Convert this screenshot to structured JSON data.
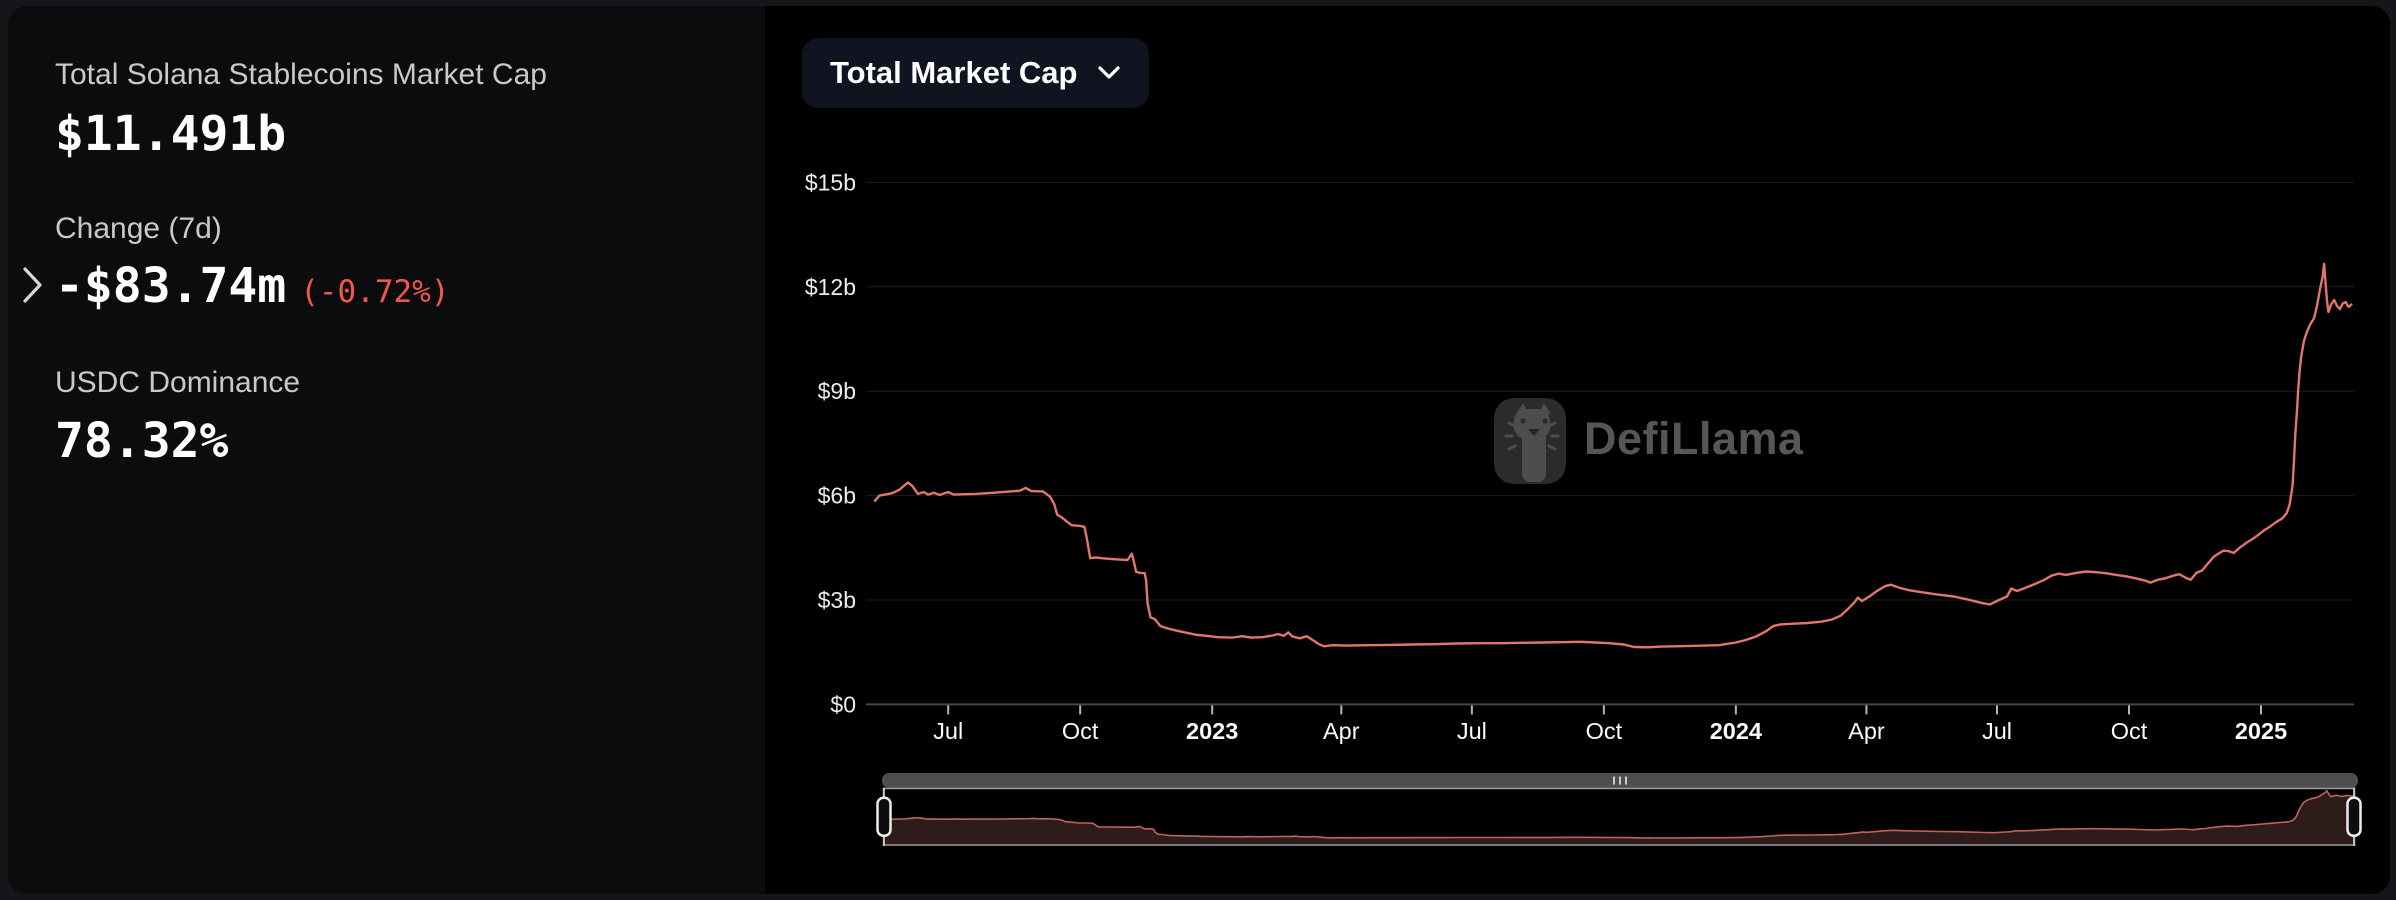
{
  "left_panel": {
    "stats": [
      {
        "label": "Total Solana Stablecoins Market Cap",
        "value": "$11.491b"
      },
      {
        "label": "Change (7d)",
        "value": "-$83.74m",
        "sub_value": "(-0.72%)",
        "sub_color": "#f4564e"
      },
      {
        "label": "USDC Dominance",
        "value": "78.32%"
      }
    ]
  },
  "toolbar": {
    "dropdown_label": "Total Market Cap"
  },
  "watermark": {
    "text": "DefiLlama"
  },
  "chart_data": {
    "type": "line",
    "title": "Total Market Cap",
    "xlabel": "",
    "ylabel": "",
    "ylim": [
      0,
      15
    ],
    "grid": "horizontal",
    "legend_position": "none",
    "line_color": "#e0766c",
    "nav_line_color": "#bf6359",
    "nav_fill_color": "#2d1c19",
    "y_axis": {
      "ticks": [
        {
          "v": 0,
          "label": "$0"
        },
        {
          "v": 3,
          "label": "$3b"
        },
        {
          "v": 6,
          "label": "$6b"
        },
        {
          "v": 9,
          "label": "$9b"
        },
        {
          "v": 12,
          "label": "$12b"
        },
        {
          "v": 15,
          "label": "$15b"
        }
      ]
    },
    "x_axis": {
      "ticks": [
        {
          "date": "2022-07-01",
          "label": "Jul",
          "bold": false
        },
        {
          "date": "2022-10-01",
          "label": "Oct",
          "bold": false
        },
        {
          "date": "2023-01-01",
          "label": "2023",
          "bold": true
        },
        {
          "date": "2023-04-01",
          "label": "Apr",
          "bold": false
        },
        {
          "date": "2023-07-01",
          "label": "Jul",
          "bold": false
        },
        {
          "date": "2023-10-01",
          "label": "Oct",
          "bold": false
        },
        {
          "date": "2024-01-01",
          "label": "2024",
          "bold": true
        },
        {
          "date": "2024-04-01",
          "label": "Apr",
          "bold": false
        },
        {
          "date": "2024-07-01",
          "label": "Jul",
          "bold": false
        },
        {
          "date": "2024-10-01",
          "label": "Oct",
          "bold": false
        },
        {
          "date": "2025-01-01",
          "label": "2025",
          "bold": true
        }
      ]
    },
    "series": [
      {
        "name": "Total Solana Stablecoins Market Cap",
        "unit": "$b",
        "points": [
          [
            "2022-05-11",
            5.85
          ],
          [
            "2022-05-14",
            6.0
          ],
          [
            "2022-05-18",
            6.03
          ],
          [
            "2022-05-23",
            6.07
          ],
          [
            "2022-05-28",
            6.17
          ],
          [
            "2022-06-03",
            6.38
          ],
          [
            "2022-06-06",
            6.28
          ],
          [
            "2022-06-10",
            6.05
          ],
          [
            "2022-06-14",
            6.1
          ],
          [
            "2022-06-17",
            6.03
          ],
          [
            "2022-06-21",
            6.08
          ],
          [
            "2022-06-25",
            6.02
          ],
          [
            "2022-07-01",
            6.1
          ],
          [
            "2022-07-05",
            6.03
          ],
          [
            "2022-07-12",
            6.04
          ],
          [
            "2022-07-20",
            6.05
          ],
          [
            "2022-08-01",
            6.08
          ],
          [
            "2022-08-10",
            6.11
          ],
          [
            "2022-08-20",
            6.14
          ],
          [
            "2022-08-24",
            6.22
          ],
          [
            "2022-08-28",
            6.13
          ],
          [
            "2022-09-05",
            6.12
          ],
          [
            "2022-09-10",
            5.97
          ],
          [
            "2022-09-13",
            5.75
          ],
          [
            "2022-09-15",
            5.45
          ],
          [
            "2022-09-18",
            5.38
          ],
          [
            "2022-09-21",
            5.28
          ],
          [
            "2022-09-25",
            5.15
          ],
          [
            "2022-10-01",
            5.13
          ],
          [
            "2022-10-04",
            5.1
          ],
          [
            "2022-10-06",
            4.7
          ],
          [
            "2022-10-08",
            4.2
          ],
          [
            "2022-10-12",
            4.22
          ],
          [
            "2022-10-16",
            4.2
          ],
          [
            "2022-10-22",
            4.18
          ],
          [
            "2022-10-29",
            4.16
          ],
          [
            "2022-11-03",
            4.15
          ],
          [
            "2022-11-06",
            4.33
          ],
          [
            "2022-11-08",
            4.0
          ],
          [
            "2022-11-09",
            3.81
          ],
          [
            "2022-11-12",
            3.78
          ],
          [
            "2022-11-15",
            3.77
          ],
          [
            "2022-11-16",
            3.55
          ],
          [
            "2022-11-17",
            2.9
          ],
          [
            "2022-11-19",
            2.5
          ],
          [
            "2022-11-22",
            2.45
          ],
          [
            "2022-11-26",
            2.25
          ],
          [
            "2022-12-01",
            2.18
          ],
          [
            "2022-12-07",
            2.12
          ],
          [
            "2022-12-13",
            2.07
          ],
          [
            "2022-12-21",
            2.0
          ],
          [
            "2022-12-28",
            1.97
          ],
          [
            "2023-01-05",
            1.93
          ],
          [
            "2023-01-15",
            1.92
          ],
          [
            "2023-01-22",
            1.96
          ],
          [
            "2023-01-28",
            1.92
          ],
          [
            "2023-02-05",
            1.93
          ],
          [
            "2023-02-12",
            1.98
          ],
          [
            "2023-02-16",
            2.02
          ],
          [
            "2023-02-20",
            1.97
          ],
          [
            "2023-02-23",
            2.07
          ],
          [
            "2023-02-26",
            1.95
          ],
          [
            "2023-03-03",
            1.9
          ],
          [
            "2023-03-08",
            1.96
          ],
          [
            "2023-03-12",
            1.85
          ],
          [
            "2023-03-16",
            1.74
          ],
          [
            "2023-03-20",
            1.67
          ],
          [
            "2023-03-26",
            1.7
          ],
          [
            "2023-04-05",
            1.69
          ],
          [
            "2023-04-20",
            1.7
          ],
          [
            "2023-05-05",
            1.71
          ],
          [
            "2023-05-20",
            1.72
          ],
          [
            "2023-06-05",
            1.73
          ],
          [
            "2023-06-20",
            1.75
          ],
          [
            "2023-07-05",
            1.76
          ],
          [
            "2023-07-20",
            1.76
          ],
          [
            "2023-08-05",
            1.77
          ],
          [
            "2023-08-20",
            1.78
          ],
          [
            "2023-09-05",
            1.79
          ],
          [
            "2023-09-15",
            1.8
          ],
          [
            "2023-09-25",
            1.78
          ],
          [
            "2023-10-05",
            1.76
          ],
          [
            "2023-10-15",
            1.72
          ],
          [
            "2023-10-22",
            1.65
          ],
          [
            "2023-11-01",
            1.64
          ],
          [
            "2023-11-10",
            1.66
          ],
          [
            "2023-11-20",
            1.67
          ],
          [
            "2023-12-01",
            1.68
          ],
          [
            "2023-12-10",
            1.69
          ],
          [
            "2023-12-20",
            1.7
          ],
          [
            "2024-01-01",
            1.78
          ],
          [
            "2024-01-08",
            1.85
          ],
          [
            "2024-01-15",
            1.95
          ],
          [
            "2024-01-22",
            2.1
          ],
          [
            "2024-01-27",
            2.25
          ],
          [
            "2024-02-01",
            2.3
          ],
          [
            "2024-02-10",
            2.32
          ],
          [
            "2024-02-20",
            2.34
          ],
          [
            "2024-03-01",
            2.38
          ],
          [
            "2024-03-08",
            2.44
          ],
          [
            "2024-03-14",
            2.55
          ],
          [
            "2024-03-20",
            2.78
          ],
          [
            "2024-03-24",
            2.95
          ],
          [
            "2024-03-26",
            3.07
          ],
          [
            "2024-03-29",
            2.97
          ],
          [
            "2024-04-03",
            3.1
          ],
          [
            "2024-04-08",
            3.25
          ],
          [
            "2024-04-14",
            3.4
          ],
          [
            "2024-04-18",
            3.44
          ],
          [
            "2024-04-24",
            3.35
          ],
          [
            "2024-05-01",
            3.28
          ],
          [
            "2024-05-10",
            3.22
          ],
          [
            "2024-05-20",
            3.16
          ],
          [
            "2024-06-01",
            3.1
          ],
          [
            "2024-06-10",
            3.02
          ],
          [
            "2024-06-20",
            2.92
          ],
          [
            "2024-06-26",
            2.87
          ],
          [
            "2024-07-01",
            2.97
          ],
          [
            "2024-07-04",
            3.03
          ],
          [
            "2024-07-08",
            3.1
          ],
          [
            "2024-07-11",
            3.33
          ],
          [
            "2024-07-15",
            3.26
          ],
          [
            "2024-07-20",
            3.34
          ],
          [
            "2024-07-27",
            3.45
          ],
          [
            "2024-08-03",
            3.58
          ],
          [
            "2024-08-08",
            3.7
          ],
          [
            "2024-08-13",
            3.76
          ],
          [
            "2024-08-18",
            3.72
          ],
          [
            "2024-08-25",
            3.78
          ],
          [
            "2024-09-01",
            3.82
          ],
          [
            "2024-09-08",
            3.8
          ],
          [
            "2024-09-15",
            3.77
          ],
          [
            "2024-09-22",
            3.72
          ],
          [
            "2024-09-29",
            3.68
          ],
          [
            "2024-10-06",
            3.62
          ],
          [
            "2024-10-12",
            3.56
          ],
          [
            "2024-10-16",
            3.5
          ],
          [
            "2024-10-21",
            3.58
          ],
          [
            "2024-10-26",
            3.62
          ],
          [
            "2024-11-01",
            3.7
          ],
          [
            "2024-11-05",
            3.74
          ],
          [
            "2024-11-10",
            3.63
          ],
          [
            "2024-11-13",
            3.58
          ],
          [
            "2024-11-17",
            3.78
          ],
          [
            "2024-11-21",
            3.85
          ],
          [
            "2024-11-25",
            4.05
          ],
          [
            "2024-11-29",
            4.24
          ],
          [
            "2024-12-03",
            4.35
          ],
          [
            "2024-12-06",
            4.42
          ],
          [
            "2024-12-10",
            4.4
          ],
          [
            "2024-12-13",
            4.35
          ],
          [
            "2024-12-17",
            4.5
          ],
          [
            "2024-12-22",
            4.65
          ],
          [
            "2024-12-27",
            4.78
          ],
          [
            "2024-12-31",
            4.9
          ],
          [
            "2025-01-03",
            5.0
          ],
          [
            "2025-01-07",
            5.1
          ],
          [
            "2025-01-12",
            5.25
          ],
          [
            "2025-01-16",
            5.35
          ],
          [
            "2025-01-19",
            5.5
          ],
          [
            "2025-01-21",
            5.75
          ],
          [
            "2025-01-23",
            6.3
          ],
          [
            "2025-01-24",
            7.0
          ],
          [
            "2025-01-25",
            7.8
          ],
          [
            "2025-01-26",
            8.4
          ],
          [
            "2025-01-27",
            9.1
          ],
          [
            "2025-01-28",
            9.6
          ],
          [
            "2025-01-29",
            10.0
          ],
          [
            "2025-01-31",
            10.45
          ],
          [
            "2025-02-02",
            10.7
          ],
          [
            "2025-02-04",
            10.9
          ],
          [
            "2025-02-07",
            11.1
          ],
          [
            "2025-02-09",
            11.45
          ],
          [
            "2025-02-11",
            11.9
          ],
          [
            "2025-02-13",
            12.3
          ],
          [
            "2025-02-14",
            12.66
          ],
          [
            "2025-02-15",
            12.1
          ],
          [
            "2025-02-16",
            11.6
          ],
          [
            "2025-02-17",
            11.28
          ],
          [
            "2025-02-19",
            11.5
          ],
          [
            "2025-02-21",
            11.62
          ],
          [
            "2025-02-23",
            11.45
          ],
          [
            "2025-02-25",
            11.36
          ],
          [
            "2025-02-27",
            11.52
          ],
          [
            "2025-03-01",
            11.56
          ],
          [
            "2025-03-03",
            11.42
          ],
          [
            "2025-03-05",
            11.49
          ]
        ]
      }
    ]
  }
}
